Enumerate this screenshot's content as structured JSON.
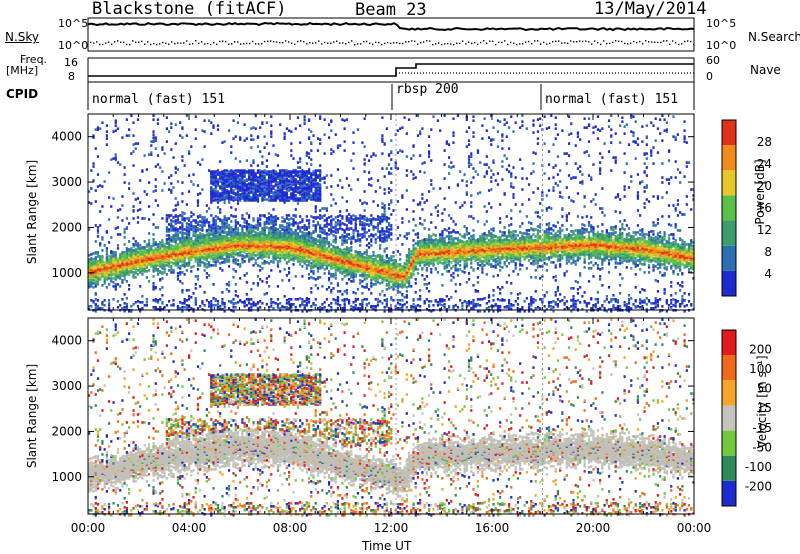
{
  "header": {
    "title": "Blackstone (fitACF)",
    "beam": "Beam 23",
    "date": "13/May/2014"
  },
  "strip": {
    "nsky_label": "N.Sky",
    "nsearch_label": "N.Search",
    "noise_ticks": [
      "10^5",
      "10^0"
    ],
    "freq_label": "Freq.",
    "freq_unit": "[MHz]",
    "freq_ticks": [
      "16",
      "8"
    ],
    "nave_label": "Nave",
    "nave_ticks": [
      "60",
      "0"
    ],
    "cpid_label": "CPID",
    "cpid_segments": [
      "normal (fast) 151",
      "rbsp 200",
      "normal (fast) 151"
    ]
  },
  "colors": {
    "echo_colormap": [
      "#1d2bd0",
      "#2c6fb3",
      "#3d9c6d",
      "#59c04a",
      "#e6c82a",
      "#f08a1a",
      "#e0321a"
    ],
    "velocity_colormap": [
      "#e21a1a",
      "#f06a1a",
      "#f4a52a",
      "#c4c4bc",
      "#74c83e",
      "#2c8a5a",
      "#1d2bd0"
    ],
    "ground_scatter": "#c0c0b8"
  },
  "chart_data": [
    {
      "type": "heatmap",
      "name": "power",
      "ylabel": "Slant Range [km]",
      "yticks": [
        "1000",
        "2000",
        "3000",
        "4000"
      ],
      "ylim": [
        180,
        4500
      ],
      "xlim": [
        0,
        24
      ],
      "colorbar_label": "Power [dB]",
      "colorbar_ticks": [
        "4",
        "8",
        "12",
        "16",
        "20",
        "24",
        "28"
      ],
      "band_center_km": [
        [
          0,
          1050
        ],
        [
          2,
          1300
        ],
        [
          4,
          1500
        ],
        [
          6,
          1650
        ],
        [
          8,
          1600
        ],
        [
          10,
          1300
        ],
        [
          12.5,
          950
        ],
        [
          13,
          1450
        ],
        [
          16,
          1550
        ],
        [
          20,
          1650
        ],
        [
          22,
          1550
        ],
        [
          24,
          1350
        ]
      ],
      "features": [
        "main scatter band 1000-2000 km",
        "patch near 3000 km 05:30-09:00",
        "scattered returns up to 4500 km"
      ]
    },
    {
      "type": "heatmap",
      "name": "velocity",
      "ylabel": "Slant Range [km]",
      "yticks": [
        "1000",
        "2000",
        "3000",
        "4000"
      ],
      "ylim": [
        180,
        4500
      ],
      "xlim": [
        0,
        24
      ],
      "xlabel": "Time UT",
      "xticks": [
        "00:00",
        "04:00",
        "08:00",
        "12:00",
        "16:00",
        "20:00",
        "00:00"
      ],
      "colorbar_label": "Velocity [m s⁻¹]",
      "colorbar_ticks": [
        "200",
        "100",
        "50",
        "15",
        "-15",
        "-50",
        "-100",
        "-200"
      ],
      "features": [
        "ground scatter band 800-2000 km",
        "mixed velocities near 3000 km 05:30-09:00"
      ]
    }
  ]
}
